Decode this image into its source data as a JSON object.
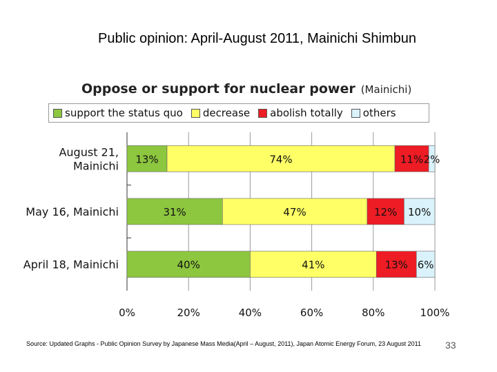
{
  "slide": {
    "title": "Public opinion: April-August 2011, Mainichi Shimbun",
    "source": "Source: Updated Graphs - Public Opinion Survey by Japanese Mass Media(April – August, 2011), Japan Atomic Energy Forum, 23 August 2011",
    "page_number": "33"
  },
  "chart_data": {
    "type": "bar",
    "orientation": "horizontal-stacked-percent",
    "title": "Oppose or support for nuclear power",
    "subtitle": "(Mainichi)",
    "categories": [
      "August 21, Mainichi",
      "May 16, Mainichi",
      "April 18, Mainichi"
    ],
    "category_lines": [
      [
        "August 21,",
        "Mainichi"
      ],
      [
        "May 16, Mainichi"
      ],
      [
        "April 18, Mainichi"
      ]
    ],
    "series": [
      {
        "name": "support the status quo",
        "color": "#8dc63f",
        "values": [
          13,
          31,
          40
        ],
        "labels": [
          "13%",
          "31%",
          "40%"
        ]
      },
      {
        "name": "decrease",
        "color": "#ffff66",
        "values": [
          74,
          47,
          41
        ],
        "labels": [
          "74%",
          "47%",
          "41%"
        ]
      },
      {
        "name": "abolish totally",
        "color": "#ee1c24",
        "values": [
          11,
          12,
          13
        ],
        "labels": [
          "11%",
          "12%",
          "13%"
        ]
      },
      {
        "name": "others",
        "color": "#d9f2fb",
        "values": [
          2,
          10,
          6
        ],
        "labels": [
          "2%",
          "10%",
          "6%"
        ]
      }
    ],
    "xlim": [
      0,
      100
    ],
    "x_ticks": [
      "0%",
      "20%",
      "40%",
      "60%",
      "80%",
      "100%"
    ],
    "legend": "top"
  }
}
